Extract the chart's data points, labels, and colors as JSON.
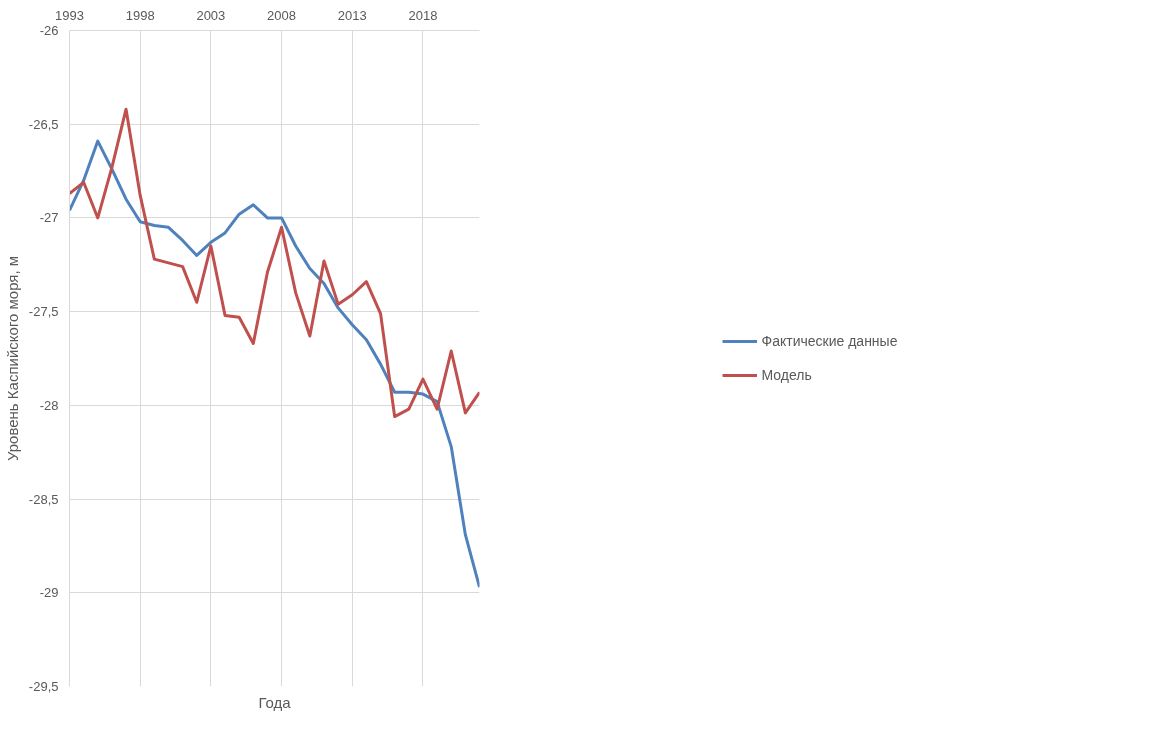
{
  "chart_data": {
    "type": "line",
    "xlabel": "Года",
    "ylabel": "Уровень Каспийского моря, м",
    "x": [
      1993,
      1994,
      1995,
      1996,
      1997,
      1998,
      1999,
      2000,
      2001,
      2002,
      2003,
      2004,
      2005,
      2006,
      2007,
      2008,
      2009,
      2010,
      2011,
      2012,
      2013,
      2014,
      2015,
      2016,
      2017,
      2018,
      2019,
      2020,
      2021,
      2022
    ],
    "series": [
      {
        "name": "Фактические данные",
        "color": "#4f81bd",
        "values": [
          -26.96,
          -26.8,
          -26.59,
          -26.74,
          -26.9,
          -27.02,
          -27.04,
          -27.05,
          -27.12,
          -27.2,
          -27.13,
          -27.08,
          -26.98,
          -26.93,
          -27.0,
          -27.0,
          -27.15,
          -27.27,
          -27.35,
          -27.48,
          -27.57,
          -27.65,
          -27.78,
          -27.93,
          -27.93,
          -27.94,
          -27.98,
          -28.22,
          -28.69,
          -28.97
        ]
      },
      {
        "name": "Модель",
        "color": "#c0504d",
        "values": [
          -26.87,
          -26.81,
          -27.0,
          -26.73,
          -26.42,
          -26.88,
          -27.22,
          -27.24,
          -27.26,
          -27.45,
          -27.15,
          -27.52,
          -27.53,
          -27.67,
          -27.29,
          -27.05,
          -27.4,
          -27.63,
          -27.23,
          -27.46,
          -27.41,
          -27.34,
          -27.51,
          -28.06,
          -28.02,
          -27.86,
          -28.02,
          -27.71,
          -28.04,
          -27.93
        ]
      }
    ],
    "xlim": [
      1993,
      2022
    ],
    "xticks": [
      1993,
      1998,
      2003,
      2008,
      2013,
      2018
    ],
    "ylim": [
      -29.5,
      -26
    ],
    "yticks": [
      -26,
      {
        "value": -26.5,
        "label": "-26,5"
      },
      -27,
      {
        "value": -27.5,
        "label": "-27,5"
      },
      -28,
      {
        "value": -28.5,
        "label": "-28,5"
      },
      -29,
      {
        "value": -29.5,
        "label": "-29,5"
      }
    ],
    "grid": true,
    "legend": "right",
    "marker": "none",
    "line_style": "solid"
  }
}
